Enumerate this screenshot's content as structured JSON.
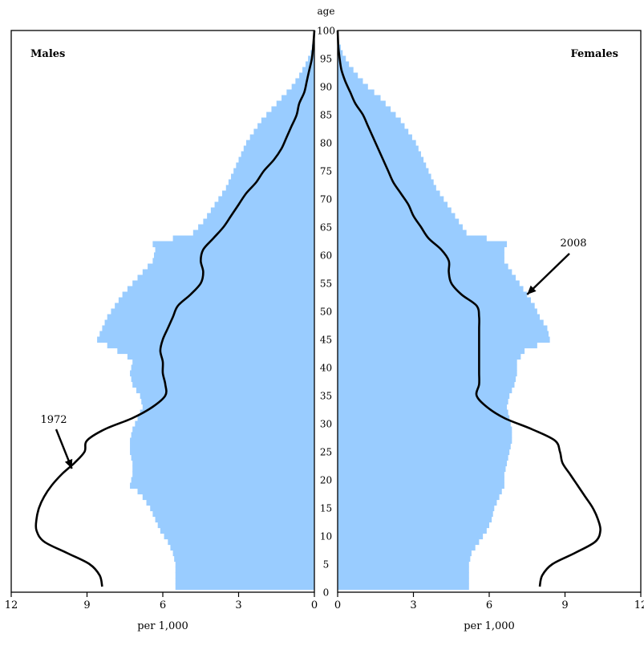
{
  "chart_data": {
    "type": "population-pyramid",
    "age_axis": {
      "label": "age",
      "range": [
        0,
        100
      ],
      "ticks": [
        0,
        5,
        10,
        15,
        20,
        25,
        30,
        35,
        40,
        45,
        50,
        55,
        60,
        65,
        70,
        75,
        80,
        85,
        90,
        95,
        100
      ]
    },
    "x_axis": {
      "range": [
        0,
        12
      ],
      "ticks": [
        0,
        3,
        6,
        9,
        12
      ],
      "unit_label": "per 1,000"
    },
    "panels": {
      "males": {
        "title": "Males"
      },
      "females": {
        "title": "Females"
      }
    },
    "series": [
      {
        "name": "2008",
        "style": "bars",
        "color": "#99ccff",
        "males": [
          [
            1,
            5.5
          ],
          [
            5,
            5.5
          ],
          [
            7,
            5.6
          ],
          [
            9,
            5.8
          ],
          [
            11,
            6.1
          ],
          [
            13,
            6.3
          ],
          [
            15,
            6.5
          ],
          [
            17,
            6.8
          ],
          [
            18,
            7.0
          ],
          [
            19,
            7.3
          ],
          [
            21,
            7.2
          ],
          [
            23,
            7.2
          ],
          [
            25,
            7.3
          ],
          [
            27,
            7.3
          ],
          [
            29,
            7.2
          ],
          [
            31,
            7.0
          ],
          [
            33,
            6.8
          ],
          [
            35,
            6.9
          ],
          [
            37,
            7.2
          ],
          [
            39,
            7.3
          ],
          [
            41,
            7.2
          ],
          [
            42,
            7.4
          ],
          [
            43,
            7.8
          ],
          [
            45,
            8.6
          ],
          [
            47,
            8.4
          ],
          [
            49,
            8.2
          ],
          [
            51,
            7.9
          ],
          [
            53,
            7.6
          ],
          [
            55,
            7.2
          ],
          [
            57,
            6.8
          ],
          [
            59,
            6.4
          ],
          [
            61,
            6.3
          ],
          [
            62,
            6.4
          ],
          [
            64,
            4.8
          ],
          [
            66,
            4.4
          ],
          [
            68,
            4.1
          ],
          [
            70,
            3.8
          ],
          [
            72,
            3.5
          ],
          [
            74,
            3.3
          ],
          [
            76,
            3.1
          ],
          [
            78,
            2.9
          ],
          [
            80,
            2.7
          ],
          [
            82,
            2.4
          ],
          [
            84,
            2.1
          ],
          [
            86,
            1.7
          ],
          [
            88,
            1.3
          ],
          [
            90,
            0.9
          ],
          [
            92,
            0.6
          ],
          [
            94,
            0.35
          ],
          [
            96,
            0.15
          ],
          [
            98,
            0.05
          ],
          [
            100,
            0
          ]
        ],
        "females": [
          [
            1,
            5.2
          ],
          [
            5,
            5.2
          ],
          [
            7,
            5.3
          ],
          [
            9,
            5.6
          ],
          [
            11,
            5.9
          ],
          [
            13,
            6.1
          ],
          [
            15,
            6.2
          ],
          [
            17,
            6.4
          ],
          [
            19,
            6.6
          ],
          [
            21,
            6.6
          ],
          [
            23,
            6.7
          ],
          [
            25,
            6.8
          ],
          [
            27,
            6.9
          ],
          [
            29,
            6.9
          ],
          [
            31,
            6.8
          ],
          [
            33,
            6.7
          ],
          [
            35,
            6.8
          ],
          [
            37,
            7.0
          ],
          [
            39,
            7.1
          ],
          [
            41,
            7.1
          ],
          [
            43,
            7.4
          ],
          [
            45,
            8.4
          ],
          [
            47,
            8.3
          ],
          [
            49,
            8.0
          ],
          [
            51,
            7.8
          ],
          [
            53,
            7.5
          ],
          [
            55,
            7.2
          ],
          [
            57,
            6.9
          ],
          [
            59,
            6.6
          ],
          [
            61,
            6.6
          ],
          [
            62,
            6.7
          ],
          [
            64,
            5.1
          ],
          [
            66,
            4.8
          ],
          [
            68,
            4.5
          ],
          [
            70,
            4.2
          ],
          [
            72,
            3.9
          ],
          [
            74,
            3.7
          ],
          [
            76,
            3.5
          ],
          [
            78,
            3.3
          ],
          [
            80,
            3.1
          ],
          [
            82,
            2.8
          ],
          [
            84,
            2.5
          ],
          [
            86,
            2.1
          ],
          [
            88,
            1.7
          ],
          [
            90,
            1.2
          ],
          [
            92,
            0.8
          ],
          [
            94,
            0.45
          ],
          [
            96,
            0.2
          ],
          [
            98,
            0.05
          ],
          [
            100,
            0
          ]
        ]
      },
      {
        "name": "1972",
        "style": "line",
        "color": "#000000",
        "males": [
          [
            1,
            8.4
          ],
          [
            3,
            8.5
          ],
          [
            5,
            8.9
          ],
          [
            7,
            9.8
          ],
          [
            9,
            10.7
          ],
          [
            11,
            11.0
          ],
          [
            13,
            11.0
          ],
          [
            15,
            10.9
          ],
          [
            17,
            10.7
          ],
          [
            19,
            10.4
          ],
          [
            21,
            10.0
          ],
          [
            23,
            9.5
          ],
          [
            25,
            9.1
          ],
          [
            27,
            9.0
          ],
          [
            29,
            8.3
          ],
          [
            31,
            7.2
          ],
          [
            33,
            6.4
          ],
          [
            35,
            5.9
          ],
          [
            37,
            5.9
          ],
          [
            39,
            6.0
          ],
          [
            41,
            6.0
          ],
          [
            43,
            6.1
          ],
          [
            45,
            6.0
          ],
          [
            47,
            5.8
          ],
          [
            49,
            5.6
          ],
          [
            51,
            5.4
          ],
          [
            53,
            4.9
          ],
          [
            55,
            4.5
          ],
          [
            57,
            4.4
          ],
          [
            59,
            4.5
          ],
          [
            61,
            4.4
          ],
          [
            63,
            4.0
          ],
          [
            65,
            3.6
          ],
          [
            67,
            3.3
          ],
          [
            69,
            3.0
          ],
          [
            71,
            2.7
          ],
          [
            73,
            2.3
          ],
          [
            75,
            2.0
          ],
          [
            77,
            1.6
          ],
          [
            79,
            1.3
          ],
          [
            81,
            1.1
          ],
          [
            83,
            0.9
          ],
          [
            85,
            0.7
          ],
          [
            87,
            0.6
          ],
          [
            89,
            0.4
          ],
          [
            91,
            0.3
          ],
          [
            93,
            0.2
          ],
          [
            95,
            0.1
          ],
          [
            97,
            0.05
          ],
          [
            100,
            0
          ]
        ],
        "females": [
          [
            1,
            8.0
          ],
          [
            3,
            8.1
          ],
          [
            5,
            8.5
          ],
          [
            7,
            9.4
          ],
          [
            9,
            10.2
          ],
          [
            11,
            10.4
          ],
          [
            13,
            10.3
          ],
          [
            15,
            10.1
          ],
          [
            17,
            9.8
          ],
          [
            19,
            9.5
          ],
          [
            21,
            9.2
          ],
          [
            23,
            8.9
          ],
          [
            25,
            8.8
          ],
          [
            27,
            8.6
          ],
          [
            29,
            7.7
          ],
          [
            31,
            6.6
          ],
          [
            33,
            5.9
          ],
          [
            35,
            5.5
          ],
          [
            37,
            5.6
          ],
          [
            39,
            5.6
          ],
          [
            41,
            5.6
          ],
          [
            43,
            5.6
          ],
          [
            45,
            5.6
          ],
          [
            47,
            5.6
          ],
          [
            49,
            5.6
          ],
          [
            51,
            5.5
          ],
          [
            53,
            4.9
          ],
          [
            55,
            4.5
          ],
          [
            57,
            4.4
          ],
          [
            59,
            4.4
          ],
          [
            61,
            4.1
          ],
          [
            63,
            3.6
          ],
          [
            65,
            3.3
          ],
          [
            67,
            3.0
          ],
          [
            69,
            2.8
          ],
          [
            71,
            2.5
          ],
          [
            73,
            2.2
          ],
          [
            75,
            2.0
          ],
          [
            77,
            1.8
          ],
          [
            79,
            1.6
          ],
          [
            81,
            1.4
          ],
          [
            83,
            1.2
          ],
          [
            85,
            1.0
          ],
          [
            87,
            0.7
          ],
          [
            89,
            0.5
          ],
          [
            91,
            0.3
          ],
          [
            93,
            0.15
          ],
          [
            95,
            0.08
          ],
          [
            97,
            0.03
          ],
          [
            100,
            0
          ]
        ]
      }
    ],
    "annotations": [
      {
        "text": "1972",
        "panel": "males",
        "points_to_age": 22,
        "points_to_value": 9.6
      },
      {
        "text": "2008",
        "panel": "females",
        "points_to_age": 53,
        "points_to_value": 7.5
      }
    ]
  }
}
